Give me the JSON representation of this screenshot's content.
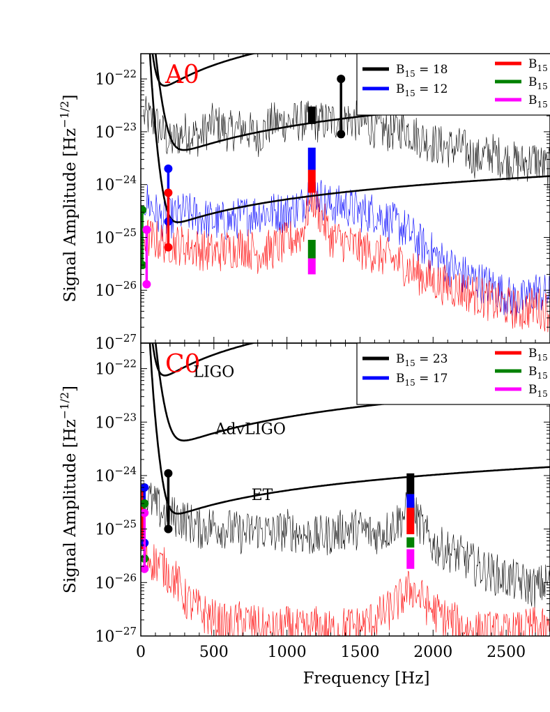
{
  "chart_data": [
    {
      "type": "line",
      "panel_label": "A0",
      "xlim": [
        0,
        2800
      ],
      "ylim": [
        1e-27,
        3e-22
      ],
      "yscale": "log",
      "xlabel": "",
      "ylabel": "Signal Amplitude [Hz",
      "ylabel_exp": "−1/2",
      "ylabel_end": "]",
      "yticks": [
        {
          "value": 1e-22,
          "base": "10",
          "exp": "−22"
        },
        {
          "value": 1e-23,
          "base": "10",
          "exp": "−23"
        },
        {
          "value": 1e-24,
          "base": "10",
          "exp": "−24"
        },
        {
          "value": 1e-25,
          "base": "10",
          "exp": "−25"
        },
        {
          "value": 1e-26,
          "base": "10",
          "exp": "−26"
        },
        {
          "value": 1e-27,
          "base": "10",
          "exp": "−27"
        }
      ],
      "legend": [
        {
          "name": "B15 = 18",
          "base": "B",
          "sub": "15",
          "rest": " = 18",
          "color": "#000000"
        },
        {
          "name": "B15 = 12",
          "base": "B",
          "sub": "15",
          "rest": " = 12",
          "color": "#0000ff"
        },
        {
          "name": "B15 = ",
          "base": "B",
          "sub": "15",
          "rest": " = ",
          "color": "#ff0000"
        },
        {
          "name": "B15 = ",
          "base": "B",
          "sub": "15",
          "rest": " = ",
          "color": "#008000"
        },
        {
          "name": "B15 = ",
          "base": "B",
          "sub": "15",
          "rest": " = ",
          "color": "#ff00ff"
        }
      ],
      "spectra": [
        {
          "color": "#000000",
          "points": [
            [
              20,
              2e-23
            ],
            [
              100,
              1.5e-23
            ],
            [
              200,
              6e-24
            ],
            [
              300,
              1e-23
            ],
            [
              400,
              8e-24
            ],
            [
              500,
              1.5e-23
            ],
            [
              600,
              1e-23
            ],
            [
              700,
              1.2e-23
            ],
            [
              800,
              8e-24
            ],
            [
              900,
              1.5e-23
            ],
            [
              1000,
              1.5e-23
            ],
            [
              1100,
              1.6e-23
            ],
            [
              1200,
              1.5e-23
            ],
            [
              1300,
              1.6e-23
            ],
            [
              1400,
              1.8e-23
            ],
            [
              1500,
              1.5e-23
            ],
            [
              1600,
              1.2e-23
            ],
            [
              1700,
              1e-23
            ],
            [
              1800,
              1.2e-23
            ],
            [
              1900,
              8e-24
            ],
            [
              2000,
              6e-24
            ],
            [
              2100,
              5e-24
            ],
            [
              2200,
              5e-24
            ],
            [
              2300,
              3e-24
            ],
            [
              2400,
              4e-24
            ],
            [
              2500,
              3e-24
            ],
            [
              2600,
              2.5e-24
            ],
            [
              2700,
              3e-24
            ],
            [
              2780,
              2e-24
            ]
          ]
        },
        {
          "color": "#0000ff",
          "points": [
            [
              40,
              5e-25
            ],
            [
              150,
              2e-25
            ],
            [
              300,
              3e-25
            ],
            [
              400,
              2.5e-25
            ],
            [
              500,
              2e-25
            ],
            [
              600,
              2e-25
            ],
            [
              700,
              2.5e-25
            ],
            [
              800,
              3e-25
            ],
            [
              900,
              3e-25
            ],
            [
              1000,
              3e-25
            ],
            [
              1100,
              4e-25
            ],
            [
              1170,
              1e-24
            ],
            [
              1250,
              5e-25
            ],
            [
              1300,
              4e-25
            ],
            [
              1400,
              4e-25
            ],
            [
              1500,
              3e-25
            ],
            [
              1600,
              3e-25
            ],
            [
              1700,
              2e-25
            ],
            [
              1800,
              1.5e-25
            ],
            [
              1900,
              8e-26
            ],
            [
              2000,
              5e-26
            ],
            [
              2100,
              3e-26
            ],
            [
              2200,
              2e-26
            ],
            [
              2300,
              1.5e-26
            ],
            [
              2400,
              1.2e-26
            ],
            [
              2500,
              8e-27
            ],
            [
              2600,
              6e-27
            ],
            [
              2700,
              1e-26
            ],
            [
              2780,
              8e-27
            ]
          ]
        },
        {
          "color": "#ff0000",
          "points": [
            [
              40,
              1e-25
            ],
            [
              150,
              8e-26
            ],
            [
              300,
              7e-26
            ],
            [
              400,
              6e-26
            ],
            [
              500,
              5e-26
            ],
            [
              600,
              6e-26
            ],
            [
              700,
              7e-26
            ],
            [
              800,
              5e-26
            ],
            [
              900,
              6e-26
            ],
            [
              1000,
              8e-26
            ],
            [
              1100,
              1.2e-25
            ],
            [
              1170,
              6e-25
            ],
            [
              1250,
              2e-25
            ],
            [
              1300,
              1e-25
            ],
            [
              1400,
              8e-26
            ],
            [
              1500,
              6e-26
            ],
            [
              1600,
              5e-26
            ],
            [
              1700,
              4e-26
            ],
            [
              1800,
              3e-26
            ],
            [
              1900,
              2e-26
            ],
            [
              2000,
              1.5e-26
            ],
            [
              2100,
              1.2e-26
            ],
            [
              2200,
              1e-26
            ],
            [
              2300,
              8e-27
            ],
            [
              2400,
              6e-27
            ],
            [
              2500,
              5e-27
            ],
            [
              2600,
              4e-27
            ],
            [
              2700,
              5e-27
            ],
            [
              2780,
              4e-27
            ]
          ]
        }
      ],
      "vertical_markers": [
        {
          "x": 188,
          "top": 2e-24,
          "bottom": 2e-25,
          "color": "#0000ff",
          "dots": true
        },
        {
          "x": 188,
          "top": 7e-25,
          "bottom": 6.5e-26,
          "color": "#ff0000",
          "dots": true
        },
        {
          "x": 1370,
          "top": 1e-22,
          "bottom": 9e-24,
          "color": "#000000",
          "dots": true
        },
        {
          "x": 10,
          "top": 3.3e-25,
          "bottom": 3e-26,
          "color": "#008000",
          "dots": true
        },
        {
          "x": 40,
          "top": 1.4e-25,
          "bottom": 1.3e-26,
          "color": "#ff00ff",
          "dots": true
        },
        {
          "x": 1170,
          "top": 3e-23,
          "bottom": 1.4e-23,
          "color": "#000000",
          "dots": false
        },
        {
          "x": 1170,
          "top": 5e-24,
          "bottom": 1.9e-24,
          "color": "#0000ff",
          "dots": false
        },
        {
          "x": 1170,
          "top": 1.9e-24,
          "bottom": 7e-25,
          "color": "#ff0000",
          "dots": false
        },
        {
          "x": 1170,
          "top": 9e-26,
          "bottom": 4e-26,
          "color": "#008000",
          "dots": false
        },
        {
          "x": 1170,
          "top": 4e-26,
          "bottom": 2e-26,
          "color": "#ff00ff",
          "dots": false
        }
      ],
      "curve_labels": []
    },
    {
      "type": "line",
      "panel_label": "C0",
      "xlim": [
        0,
        2800
      ],
      "ylim": [
        1e-27,
        3e-22
      ],
      "yscale": "log",
      "xlabel": "Frequency [Hz]",
      "ylabel": "Signal Amplitude [Hz",
      "ylabel_exp": "−1/2",
      "ylabel_end": "]",
      "xticks": [
        "0",
        "500",
        "1000",
        "1500",
        "2000",
        "2500"
      ],
      "xtick_values": [
        0,
        500,
        1000,
        1500,
        2000,
        2500
      ],
      "yticks": [
        {
          "value": 1e-22,
          "base": "10",
          "exp": "−22"
        },
        {
          "value": 1e-23,
          "base": "10",
          "exp": "−23"
        },
        {
          "value": 1e-24,
          "base": "10",
          "exp": "−24"
        },
        {
          "value": 1e-25,
          "base": "10",
          "exp": "−25"
        },
        {
          "value": 1e-26,
          "base": "10",
          "exp": "−26"
        },
        {
          "value": 1e-27,
          "base": "10",
          "exp": "−27"
        }
      ],
      "legend": [
        {
          "name": "B15 = 23",
          "base": "B",
          "sub": "15",
          "rest": " = 23",
          "color": "#000000"
        },
        {
          "name": "B15 = 17",
          "base": "B",
          "sub": "15",
          "rest": " = 17",
          "color": "#0000ff"
        },
        {
          "name": "B15 = ",
          "base": "B",
          "sub": "15",
          "rest": " = ",
          "color": "#ff0000"
        },
        {
          "name": "B15 = ",
          "base": "B",
          "sub": "15",
          "rest": " = ",
          "color": "#008000"
        },
        {
          "name": "B15 = ",
          "base": "B",
          "sub": "15",
          "rest": " = ",
          "color": "#ff00ff"
        }
      ],
      "spectra": [
        {
          "color": "#000000",
          "points": [
            [
              40,
              4e-25
            ],
            [
              150,
              2e-25
            ],
            [
              300,
              1.5e-25
            ],
            [
              400,
              1e-25
            ],
            [
              500,
              1.2e-25
            ],
            [
              600,
              1e-25
            ],
            [
              700,
              8e-26
            ],
            [
              800,
              1e-25
            ],
            [
              900,
              8e-26
            ],
            [
              1000,
              1e-25
            ],
            [
              1100,
              8e-26
            ],
            [
              1200,
              7e-26
            ],
            [
              1300,
              8e-26
            ],
            [
              1400,
              1e-25
            ],
            [
              1500,
              1e-25
            ],
            [
              1600,
              8e-26
            ],
            [
              1700,
              1e-25
            ],
            [
              1850,
              2.5e-25
            ],
            [
              1950,
              8e-26
            ],
            [
              2000,
              5e-26
            ],
            [
              2100,
              4e-26
            ],
            [
              2200,
              3e-26
            ],
            [
              2300,
              2e-26
            ],
            [
              2400,
              1.5e-26
            ],
            [
              2500,
              1.2e-26
            ],
            [
              2600,
              1e-26
            ],
            [
              2700,
              8e-27
            ],
            [
              2780,
              1e-26
            ]
          ]
        },
        {
          "color": "#ff0000",
          "points": [
            [
              40,
              3e-26
            ],
            [
              150,
              2e-26
            ],
            [
              250,
              1e-26
            ],
            [
              300,
              5e-27
            ],
            [
              400,
              3e-27
            ],
            [
              500,
              2e-27
            ],
            [
              600,
              1.5e-27
            ],
            [
              700,
              2e-27
            ],
            [
              800,
              1.5e-27
            ],
            [
              900,
              1.2e-27
            ],
            [
              1000,
              1.5e-27
            ],
            [
              1100,
              1.2e-27
            ],
            [
              1200,
              1.5e-27
            ],
            [
              1300,
              1.2e-27
            ],
            [
              1400,
              1.5e-27
            ],
            [
              1500,
              1.5e-27
            ],
            [
              1600,
              2e-27
            ],
            [
              1700,
              3e-27
            ],
            [
              1850,
              8e-27
            ],
            [
              1950,
              4e-27
            ],
            [
              2000,
              3e-27
            ],
            [
              2100,
              2e-27
            ],
            [
              2200,
              1.5e-27
            ],
            [
              2300,
              1.2e-27
            ],
            [
              2400,
              1.2e-27
            ],
            [
              2500,
              1.1e-27
            ],
            [
              2600,
              1.2e-27
            ],
            [
              2700,
              1.5e-27
            ],
            [
              2780,
              1.2e-27
            ]
          ]
        }
      ],
      "vertical_markers": [
        {
          "x": 188,
          "top": 1.1e-24,
          "bottom": 1e-25,
          "color": "#000000",
          "dots": true
        },
        {
          "x": 10,
          "top": 5.5e-25,
          "bottom": 5e-26,
          "color": "#ff0000",
          "dots": true
        },
        {
          "x": 25,
          "top": 6e-25,
          "bottom": 5.5e-26,
          "color": "#0000ff",
          "dots": true
        },
        {
          "x": 25,
          "top": 3e-25,
          "bottom": 2.8e-26,
          "color": "#008000",
          "dots": true
        },
        {
          "x": 25,
          "top": 2e-25,
          "bottom": 1.8e-26,
          "color": "#ff00ff",
          "dots": true
        },
        {
          "x": 1845,
          "top": 1.1e-24,
          "bottom": 4.5e-25,
          "color": "#000000",
          "dots": false
        },
        {
          "x": 1845,
          "top": 4.5e-25,
          "bottom": 2.5e-25,
          "color": "#0000ff",
          "dots": false
        },
        {
          "x": 1845,
          "top": 2.5e-25,
          "bottom": 8e-26,
          "color": "#ff0000",
          "dots": false
        },
        {
          "x": 1845,
          "top": 7e-26,
          "bottom": 4.5e-26,
          "color": "#008000",
          "dots": false
        },
        {
          "x": 1845,
          "top": 4.2e-26,
          "bottom": 1.8e-26,
          "color": "#ff00ff",
          "dots": false
        }
      ],
      "curve_labels": [
        {
          "text": "LIGO",
          "x": 500,
          "y": 7e-23
        },
        {
          "text": "AdvLIGO",
          "x": 750,
          "y": 6e-24
        },
        {
          "text": "ET",
          "x": 830,
          "y": 3.5e-25
        }
      ]
    }
  ]
}
